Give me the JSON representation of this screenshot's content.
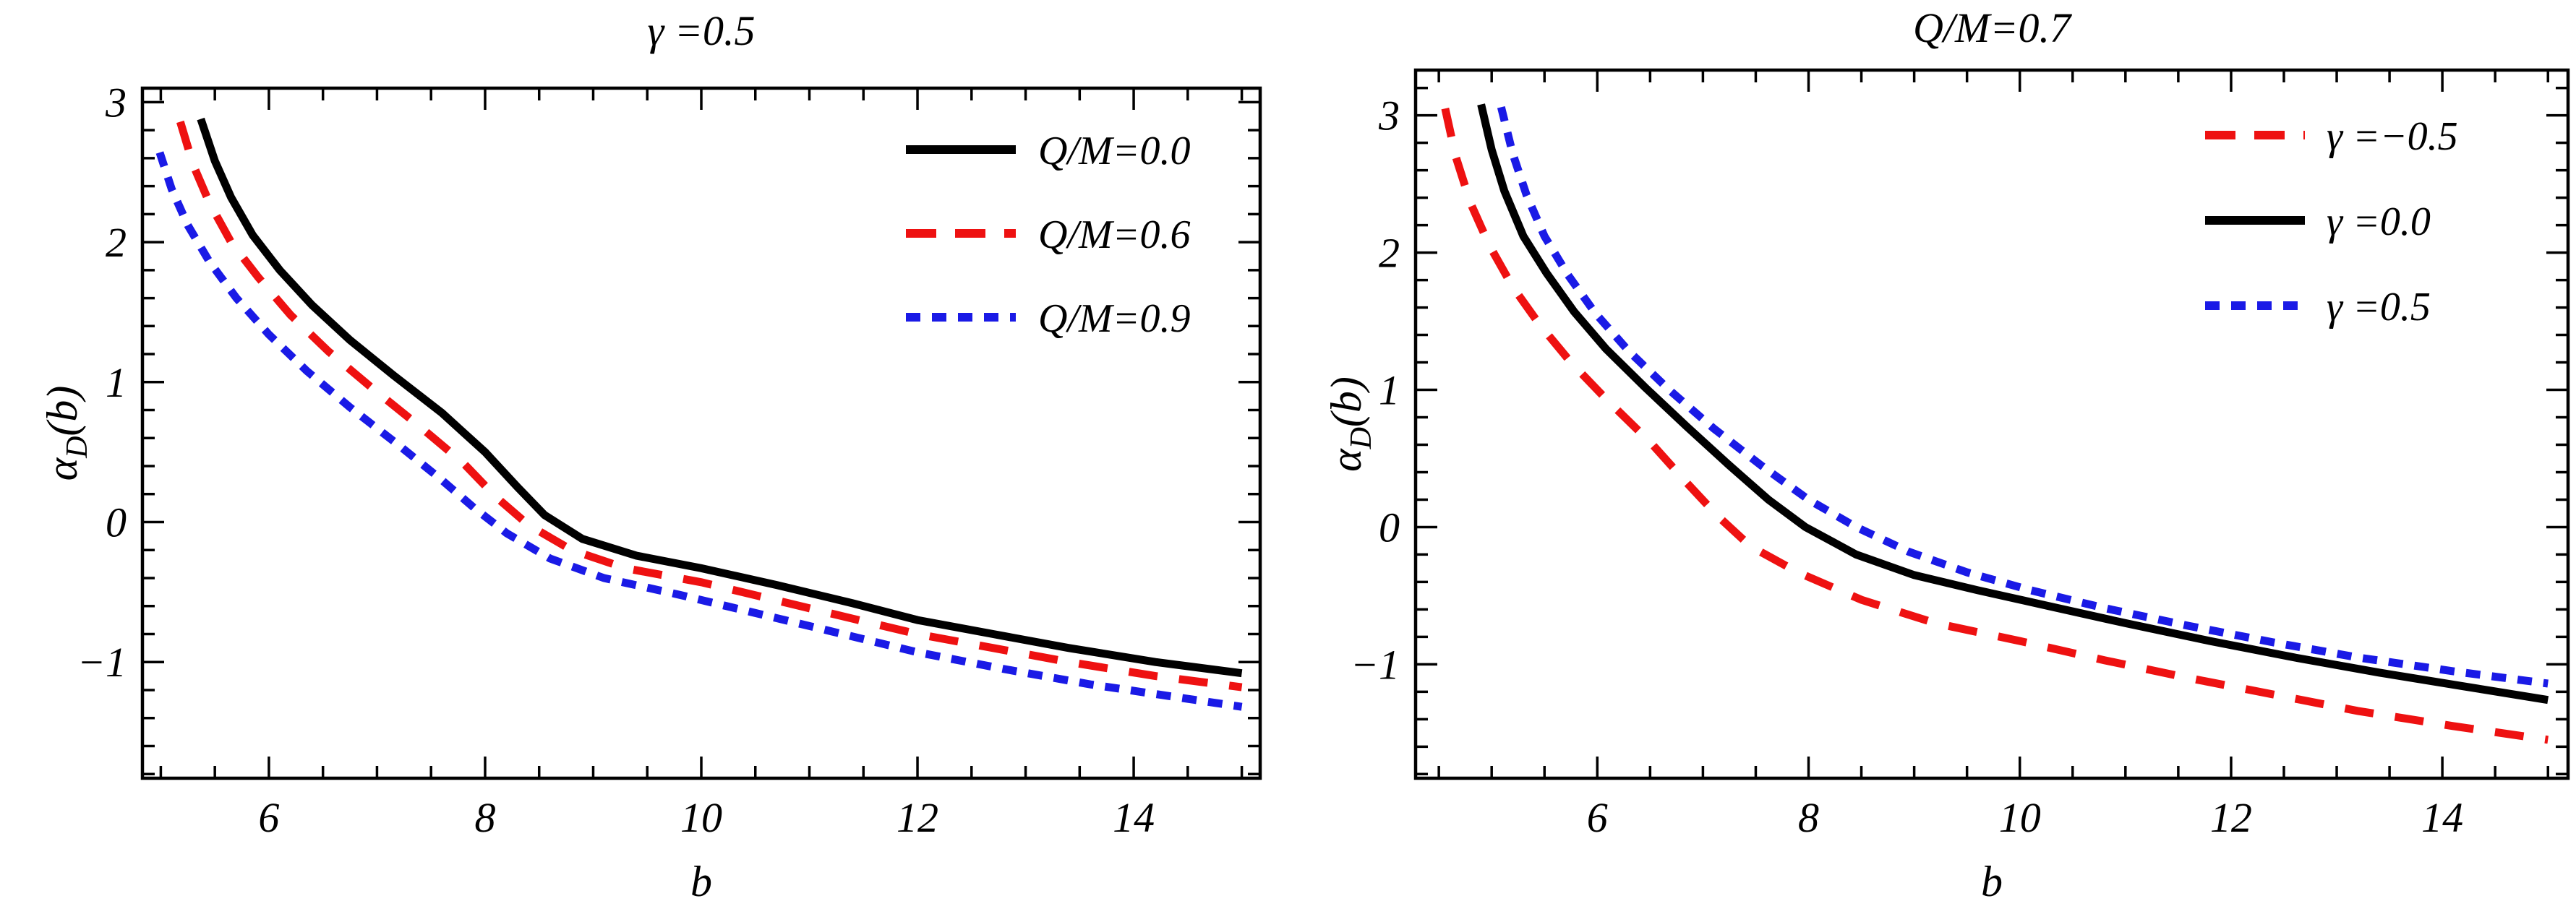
{
  "figure": {
    "background": "#ffffff",
    "description": "Two side-by-side line plots of deflection angle alpha_D(b) versus impact parameter b"
  },
  "colors": {
    "black": "#000000",
    "red": "#ee1111",
    "blue": "#1a1ae6"
  },
  "chart_data": [
    {
      "type": "line",
      "title": "γ =0.5",
      "xlabel": "b",
      "ylabel": {
        "base": "α",
        "sub": "D",
        "rest": "(b)"
      },
      "xlim": [
        4.83,
        15.17
      ],
      "ylim": [
        -1.83,
        3.1
      ],
      "grid": false,
      "xticks": {
        "major": [
          6,
          8,
          10,
          12,
          14
        ],
        "labels": [
          "6",
          "8",
          "10",
          "12",
          "14"
        ],
        "minor_step": 0.5
      },
      "yticks": {
        "major": [
          -1,
          0,
          1,
          2,
          3
        ],
        "labels": [
          "−1",
          "0",
          "1",
          "2",
          "3"
        ],
        "minor_step": 0.2
      },
      "legend": {
        "position": "top-right",
        "items": [
          {
            "series": 0,
            "label": "Q/M=0.0"
          },
          {
            "series": 1,
            "label": "Q/M=0.6"
          },
          {
            "series": 2,
            "label": "Q/M=0.9"
          }
        ]
      },
      "series": [
        {
          "name": "QM-0.0",
          "color": "#000000",
          "style": "solid",
          "points": [
            [
              5.37,
              2.88
            ],
            [
              5.5,
              2.58
            ],
            [
              5.65,
              2.32
            ],
            [
              5.85,
              2.05
            ],
            [
              6.1,
              1.8
            ],
            [
              6.4,
              1.55
            ],
            [
              6.75,
              1.3
            ],
            [
              7.15,
              1.05
            ],
            [
              7.6,
              0.78
            ],
            [
              8.0,
              0.5
            ],
            [
              8.3,
              0.25
            ],
            [
              8.55,
              0.05
            ],
            [
              8.9,
              -0.12
            ],
            [
              9.4,
              -0.24
            ],
            [
              10.0,
              -0.33
            ],
            [
              10.7,
              -0.45
            ],
            [
              11.4,
              -0.58
            ],
            [
              12.0,
              -0.7
            ],
            [
              12.7,
              -0.8
            ],
            [
              13.4,
              -0.9
            ],
            [
              14.2,
              -1.0
            ],
            [
              15.0,
              -1.08
            ]
          ]
        },
        {
          "name": "QM-0.6",
          "color": "#ee1111",
          "style": "dashed",
          "points": [
            [
              5.18,
              2.86
            ],
            [
              5.3,
              2.55
            ],
            [
              5.45,
              2.28
            ],
            [
              5.65,
              2.0
            ],
            [
              5.9,
              1.75
            ],
            [
              6.2,
              1.48
            ],
            [
              6.55,
              1.22
            ],
            [
              6.95,
              0.96
            ],
            [
              7.4,
              0.68
            ],
            [
              7.8,
              0.42
            ],
            [
              8.1,
              0.18
            ],
            [
              8.4,
              -0.02
            ],
            [
              8.8,
              -0.2
            ],
            [
              9.3,
              -0.33
            ],
            [
              10.0,
              -0.43
            ],
            [
              10.7,
              -0.56
            ],
            [
              11.4,
              -0.69
            ],
            [
              12.0,
              -0.8
            ],
            [
              12.7,
              -0.9
            ],
            [
              13.4,
              -1.0
            ],
            [
              14.2,
              -1.1
            ],
            [
              15.0,
              -1.18
            ]
          ]
        },
        {
          "name": "QM-0.9",
          "color": "#1a1ae6",
          "style": "dotted",
          "points": [
            [
              4.99,
              2.64
            ],
            [
              5.1,
              2.38
            ],
            [
              5.25,
              2.12
            ],
            [
              5.45,
              1.86
            ],
            [
              5.7,
              1.6
            ],
            [
              6.0,
              1.34
            ],
            [
              6.35,
              1.08
            ],
            [
              6.75,
              0.82
            ],
            [
              7.2,
              0.55
            ],
            [
              7.6,
              0.3
            ],
            [
              7.9,
              0.1
            ],
            [
              8.2,
              -0.08
            ],
            [
              8.6,
              -0.26
            ],
            [
              9.1,
              -0.4
            ],
            [
              9.8,
              -0.52
            ],
            [
              10.5,
              -0.65
            ],
            [
              11.2,
              -0.78
            ],
            [
              12.0,
              -0.93
            ],
            [
              12.8,
              -1.05
            ],
            [
              13.6,
              -1.16
            ],
            [
              14.3,
              -1.24
            ],
            [
              15.0,
              -1.32
            ]
          ]
        }
      ]
    },
    {
      "type": "line",
      "title": "Q/M=0.7",
      "xlabel": "b",
      "ylabel": {
        "base": "α",
        "sub": "D",
        "rest": "(b)"
      },
      "xlim": [
        4.28,
        15.19
      ],
      "ylim": [
        -1.83,
        3.33
      ],
      "grid": false,
      "xticks": {
        "major": [
          6,
          8,
          10,
          12,
          14
        ],
        "labels": [
          "6",
          "8",
          "10",
          "12",
          "14"
        ],
        "minor_step": 0.5
      },
      "yticks": {
        "major": [
          -1,
          0,
          1,
          2,
          3
        ],
        "labels": [
          "−1",
          "0",
          "1",
          "2",
          "3"
        ],
        "minor_step": 0.2
      },
      "legend": {
        "position": "top-right",
        "items": [
          {
            "series": 0,
            "label": "γ =−0.5"
          },
          {
            "series": 1,
            "label": "γ =0.0"
          },
          {
            "series": 2,
            "label": "γ =0.5"
          }
        ]
      },
      "series": [
        {
          "name": "gamma--0.5",
          "color": "#ee1111",
          "style": "dashed",
          "points": [
            [
              4.56,
              3.05
            ],
            [
              4.66,
              2.7
            ],
            [
              4.8,
              2.36
            ],
            [
              4.98,
              2.05
            ],
            [
              5.2,
              1.75
            ],
            [
              5.45,
              1.48
            ],
            [
              5.75,
              1.2
            ],
            [
              6.1,
              0.92
            ],
            [
              6.5,
              0.62
            ],
            [
              6.85,
              0.32
            ],
            [
              7.14,
              0.08
            ],
            [
              7.45,
              -0.14
            ],
            [
              7.9,
              -0.33
            ],
            [
              8.5,
              -0.53
            ],
            [
              9.2,
              -0.7
            ],
            [
              10.0,
              -0.83
            ],
            [
              10.8,
              -0.97
            ],
            [
              11.6,
              -1.1
            ],
            [
              12.4,
              -1.22
            ],
            [
              13.2,
              -1.34
            ],
            [
              14.1,
              -1.45
            ],
            [
              15.0,
              -1.55
            ]
          ]
        },
        {
          "name": "gamma-0.0",
          "color": "#000000",
          "style": "solid",
          "points": [
            [
              4.9,
              3.08
            ],
            [
              5.0,
              2.75
            ],
            [
              5.12,
              2.45
            ],
            [
              5.3,
              2.12
            ],
            [
              5.52,
              1.85
            ],
            [
              5.78,
              1.57
            ],
            [
              6.08,
              1.3
            ],
            [
              6.45,
              1.02
            ],
            [
              6.85,
              0.73
            ],
            [
              7.25,
              0.45
            ],
            [
              7.62,
              0.2
            ],
            [
              7.97,
              0.0
            ],
            [
              8.45,
              -0.2
            ],
            [
              9.0,
              -0.35
            ],
            [
              9.6,
              -0.46
            ],
            [
              10.3,
              -0.58
            ],
            [
              11.0,
              -0.7
            ],
            [
              11.8,
              -0.83
            ],
            [
              12.6,
              -0.95
            ],
            [
              13.4,
              -1.06
            ],
            [
              14.2,
              -1.16
            ],
            [
              15.0,
              -1.26
            ]
          ]
        },
        {
          "name": "gamma-0.5",
          "color": "#1a1ae6",
          "style": "dotted",
          "points": [
            [
              5.09,
              3.06
            ],
            [
              5.2,
              2.72
            ],
            [
              5.33,
              2.42
            ],
            [
              5.5,
              2.12
            ],
            [
              5.72,
              1.84
            ],
            [
              5.98,
              1.56
            ],
            [
              6.3,
              1.28
            ],
            [
              6.68,
              1.0
            ],
            [
              7.1,
              0.72
            ],
            [
              7.55,
              0.45
            ],
            [
              8.0,
              0.2
            ],
            [
              8.45,
              0.0
            ],
            [
              8.95,
              -0.18
            ],
            [
              9.5,
              -0.33
            ],
            [
              10.1,
              -0.46
            ],
            [
              10.8,
              -0.59
            ],
            [
              11.6,
              -0.72
            ],
            [
              12.4,
              -0.84
            ],
            [
              13.2,
              -0.95
            ],
            [
              14.1,
              -1.05
            ],
            [
              15.0,
              -1.14
            ]
          ]
        }
      ]
    }
  ]
}
